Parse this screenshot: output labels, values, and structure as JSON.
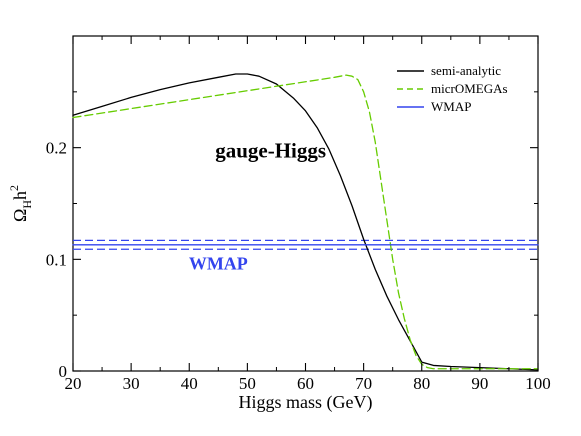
{
  "chart_data": {
    "type": "line",
    "title": "",
    "xlabel": "Higgs mass (GeV)",
    "ylabel_parts": {
      "base": "Ω",
      "sub": "H",
      "mid": "h",
      "sup": "2"
    },
    "xlim": [
      20,
      100
    ],
    "ylim": [
      0,
      0.3
    ],
    "xticks": [
      20,
      30,
      40,
      50,
      60,
      70,
      80,
      90,
      100
    ],
    "yticks": [
      0,
      0.1,
      0.2
    ],
    "xtick_labels": [
      "20",
      "30",
      "40",
      "50",
      "60",
      "70",
      "80",
      "90",
      "100"
    ],
    "ytick_labels": [
      "0",
      "0.1",
      "0.2"
    ],
    "grid": false,
    "legend_position": "top-right",
    "annotations": [
      {
        "text": "gauge-Higgs",
        "x": 54,
        "y": 0.191
      },
      {
        "text": "WMAP",
        "x": 45,
        "y": 0.091
      }
    ],
    "series": [
      {
        "name": "semi-analytic",
        "style": "solid",
        "color": "#000000",
        "x": [
          20,
          25,
          30,
          35,
          40,
          45,
          48,
          50,
          52,
          55,
          58,
          60,
          62,
          64,
          66,
          68,
          70,
          72,
          74,
          76,
          78,
          80,
          82,
          85,
          90,
          95,
          100
        ],
        "y": [
          0.229,
          0.237,
          0.245,
          0.252,
          0.258,
          0.263,
          0.266,
          0.266,
          0.264,
          0.257,
          0.244,
          0.233,
          0.218,
          0.199,
          0.175,
          0.148,
          0.118,
          0.091,
          0.067,
          0.046,
          0.027,
          0.008,
          0.005,
          0.004,
          0.003,
          0.002,
          0.001
        ]
      },
      {
        "name": "micrOMEGAs",
        "style": "dashed",
        "color": "#66cc00",
        "x": [
          20,
          30,
          40,
          50,
          60,
          65,
          67,
          68,
          69,
          70,
          71,
          72,
          73,
          74,
          75,
          76,
          77,
          78,
          79,
          80,
          81,
          82,
          85,
          90,
          100
        ],
        "y": [
          0.227,
          0.235,
          0.243,
          0.251,
          0.259,
          0.263,
          0.265,
          0.264,
          0.261,
          0.25,
          0.232,
          0.205,
          0.17,
          0.135,
          0.1,
          0.07,
          0.047,
          0.028,
          0.014,
          0.006,
          0.003,
          0.002,
          0.002,
          0.002,
          0.002
        ]
      },
      {
        "name": "WMAP",
        "style": "solid",
        "color": "#3344ee",
        "x": [
          20,
          100
        ],
        "y": [
          0.113,
          0.113
        ]
      }
    ],
    "wmap_band": {
      "lower": 0.109,
      "upper": 0.117,
      "color": "#3344ee",
      "style": "dashed"
    }
  }
}
